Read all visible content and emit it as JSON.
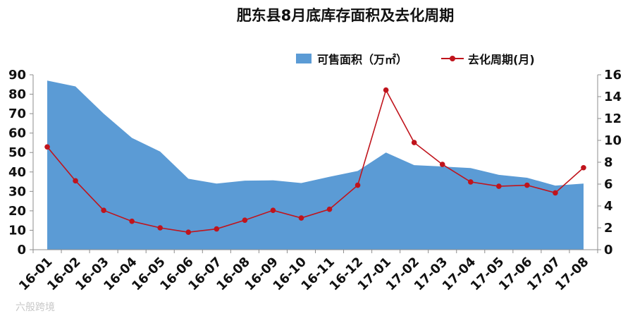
{
  "chart_data": {
    "type": "area",
    "title": "肥东县8月底库存面积及去化周期",
    "categories": [
      "16-01",
      "16-02",
      "16-03",
      "16-04",
      "16-05",
      "16-06",
      "16-07",
      "16-08",
      "16-09",
      "16-10",
      "16-11",
      "16-12",
      "17-01",
      "17-02",
      "17-03",
      "17-04",
      "17-05",
      "17-06",
      "17-07",
      "17-08"
    ],
    "series": [
      {
        "name": "可售面积（万㎡）",
        "type": "area",
        "axis": "left",
        "color": "#5b9bd5",
        "values": [
          87,
          84,
          70,
          57.5,
          50.5,
          36.5,
          34,
          35.5,
          35.7,
          34.3,
          37.5,
          40.5,
          50,
          43.5,
          42.8,
          42,
          38.5,
          37,
          33,
          34
        ]
      },
      {
        "name": "去化周期(月)",
        "type": "line",
        "axis": "right",
        "color": "#c0141c",
        "values": [
          9.4,
          6.3,
          3.6,
          2.6,
          2.0,
          1.6,
          1.9,
          2.7,
          3.6,
          2.9,
          3.7,
          5.9,
          14.6,
          9.8,
          7.8,
          6.2,
          5.8,
          5.9,
          5.2,
          7.5
        ]
      }
    ],
    "y_left": {
      "min": 0,
      "max": 90,
      "ticks": [
        0,
        10,
        20,
        30,
        40,
        50,
        60,
        70,
        80,
        90
      ]
    },
    "y_right": {
      "min": 0,
      "max": 16,
      "ticks": [
        0,
        2,
        4,
        6,
        8,
        10,
        12,
        14,
        16
      ]
    },
    "grid": false,
    "legend_position": "top-right"
  },
  "watermark": "六般跨境"
}
